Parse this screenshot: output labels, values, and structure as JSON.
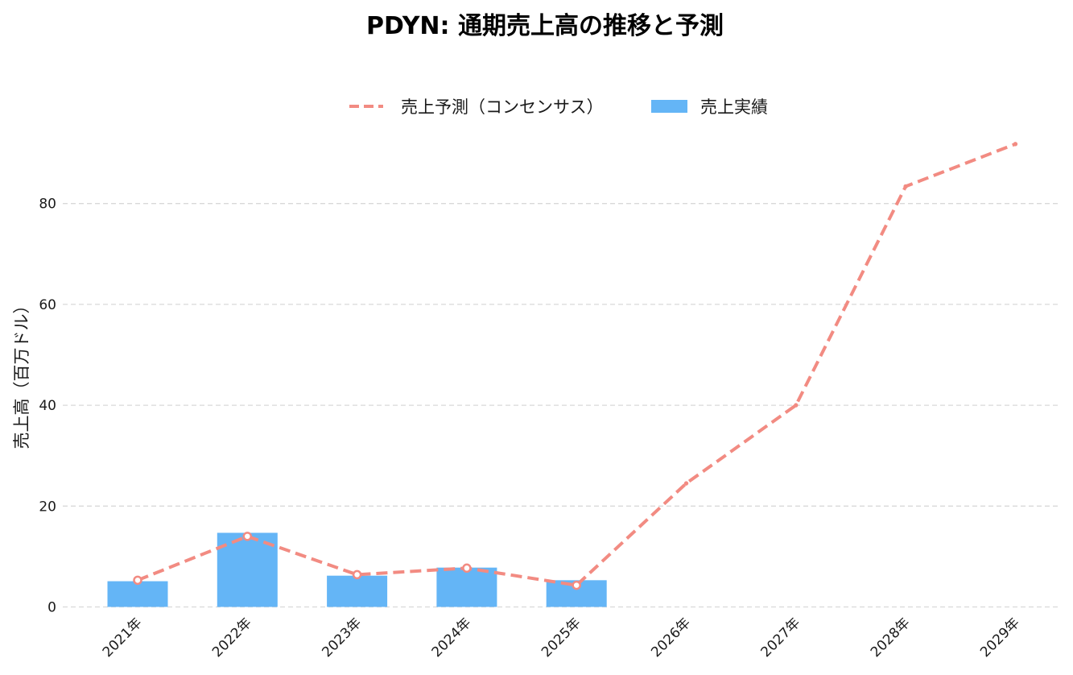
{
  "chart_data": {
    "type": "bar",
    "title": "PDYN: 通期売上高の推移と予測",
    "ylabel": "売上高（百万ドル）",
    "xlabel": "",
    "categories": [
      "2021年",
      "2022年",
      "2023年",
      "2024年",
      "2025年",
      "2026年",
      "2027年",
      "2028年",
      "2029年"
    ],
    "ylim": [
      0,
      95
    ],
    "yticks": [
      0,
      20,
      40,
      60,
      80
    ],
    "grid": true,
    "legend_position": "top-center",
    "series": [
      {
        "name": "売上予測（コンセンサス）",
        "type": "line",
        "style": "dashed",
        "color": "#f28b82",
        "values": [
          5.3,
          14.0,
          6.4,
          7.7,
          4.3,
          24.5,
          40.0,
          83.4,
          91.8
        ]
      },
      {
        "name": "売上実績",
        "type": "bar",
        "color": "#64b5f6",
        "values": [
          5.1,
          14.7,
          6.2,
          7.8,
          5.3,
          null,
          null,
          null,
          null
        ]
      }
    ]
  }
}
